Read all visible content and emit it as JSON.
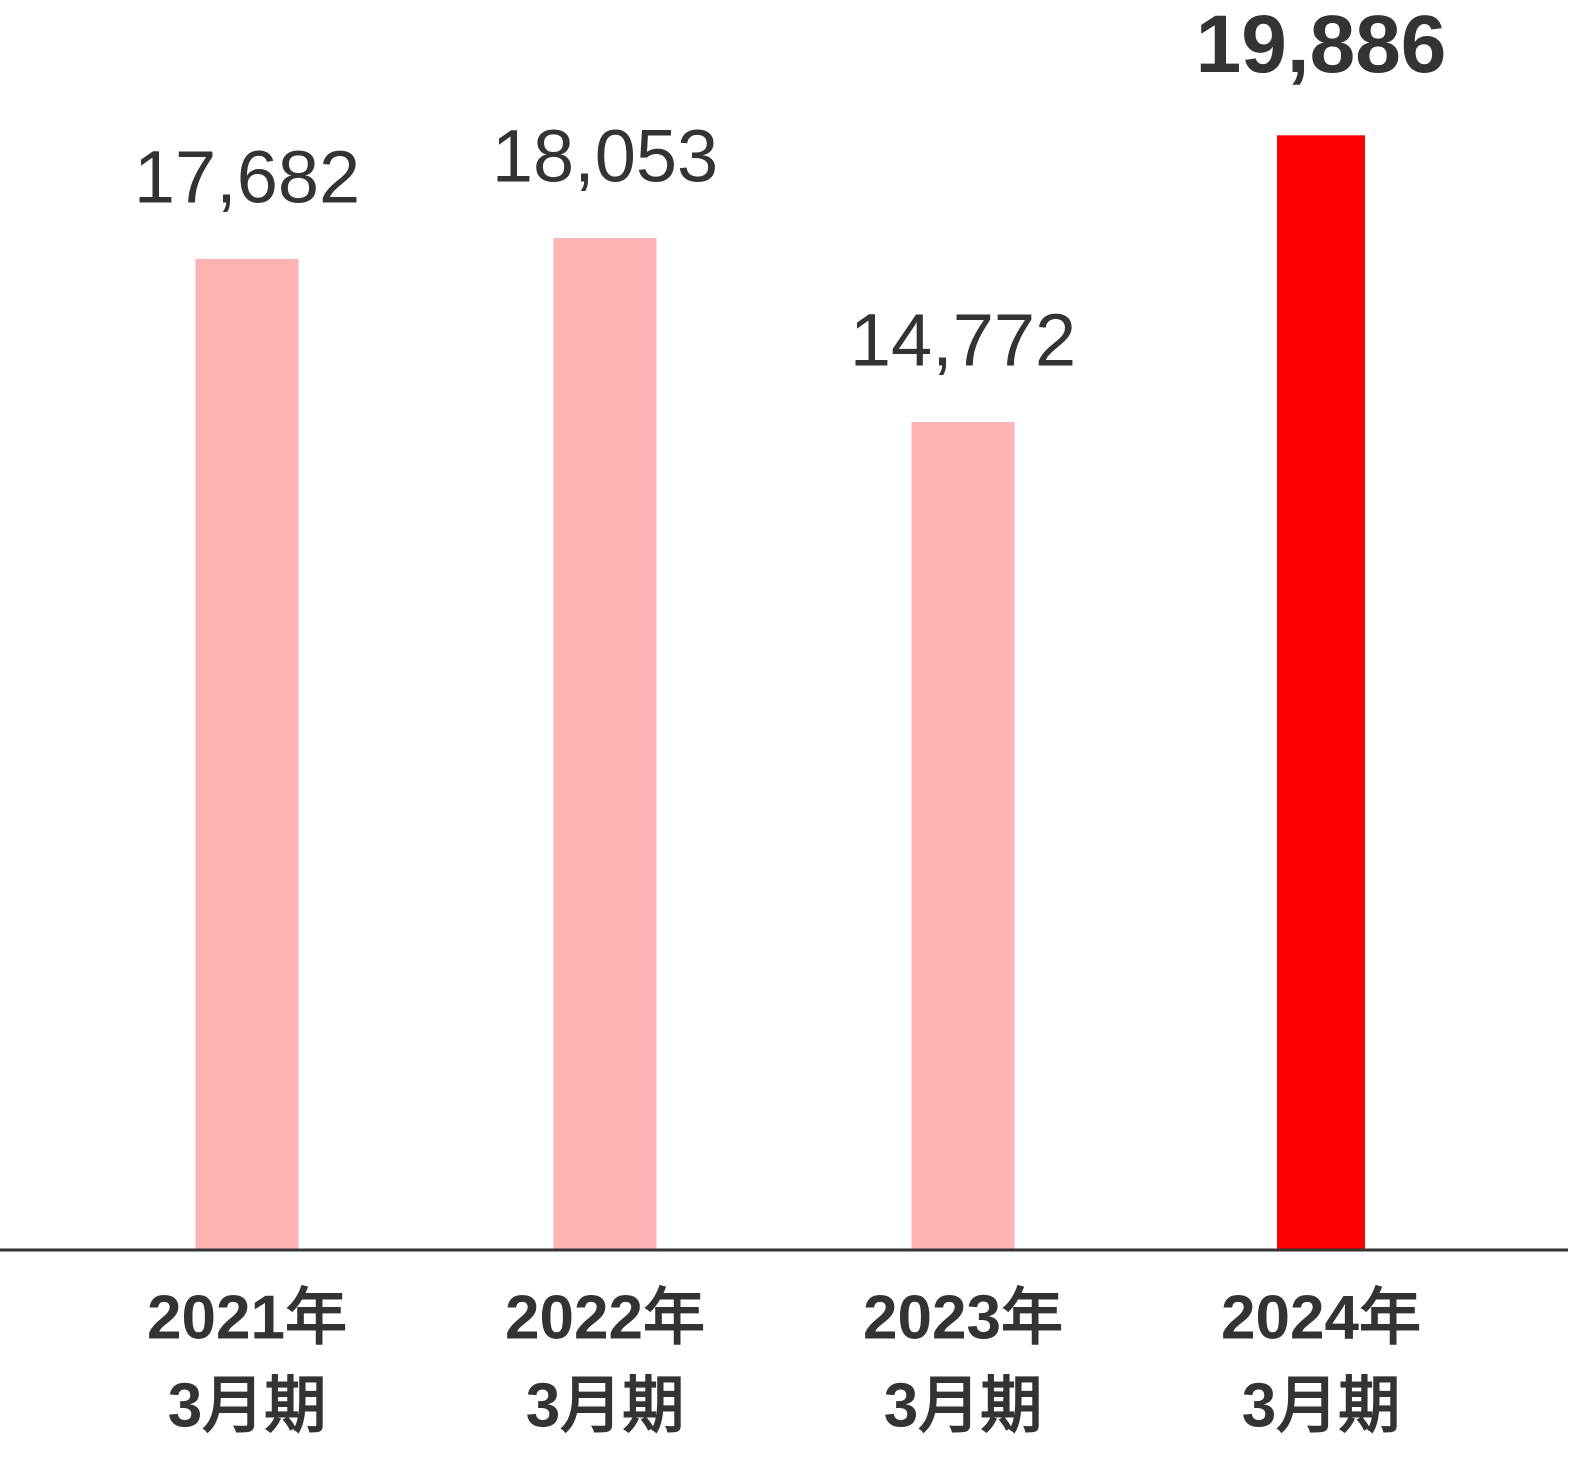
{
  "chart_data": {
    "type": "bar",
    "categories": [
      [
        "2021年",
        "3月期"
      ],
      [
        "2022年",
        "3月期"
      ],
      [
        "2023年",
        "3月期"
      ],
      [
        "2024年",
        "3月期"
      ]
    ],
    "values": [
      17682,
      18053,
      14772,
      19886
    ],
    "value_labels": [
      "17,682",
      "18,053",
      "14,772",
      "19,886"
    ],
    "colors": [
      "#fdb2b4",
      "#fdb2b4",
      "#fdb2b4",
      "#ff0000"
    ],
    "bold_labels": [
      false,
      false,
      false,
      true
    ],
    "ylim": [
      0,
      22300
    ]
  }
}
